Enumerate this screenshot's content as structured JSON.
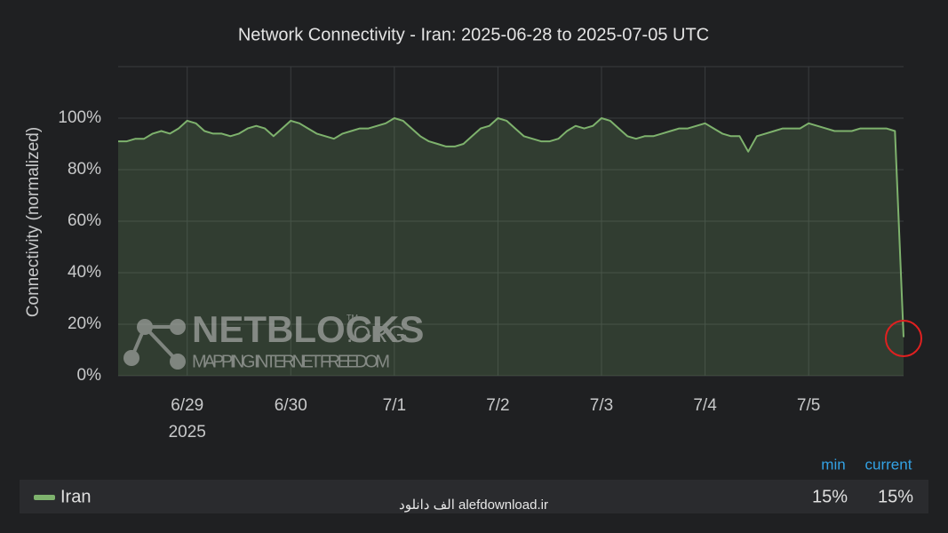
{
  "chart_data": {
    "type": "line",
    "title": "Network Connectivity - Iran: 2025-06-28 to 2025-07-05 UTC",
    "y_label": "Connectivity (normalized)",
    "year_label": "2025",
    "categories": [
      null,
      null,
      null,
      null,
      null,
      null,
      null,
      null,
      "6/29",
      null,
      null,
      null,
      null,
      null,
      null,
      null,
      null,
      null,
      null,
      null,
      "6/30",
      null,
      null,
      null,
      null,
      null,
      null,
      null,
      null,
      null,
      null,
      null,
      "7/1",
      null,
      null,
      null,
      null,
      null,
      null,
      null,
      null,
      null,
      null,
      null,
      "7/2",
      null,
      null,
      null,
      null,
      null,
      null,
      null,
      null,
      null,
      null,
      null,
      "7/3",
      null,
      null,
      null,
      null,
      null,
      null,
      null,
      null,
      null,
      null,
      null,
      "7/4",
      null,
      null,
      null,
      null,
      null,
      null,
      null,
      null,
      null,
      null,
      null,
      "7/5",
      null,
      null,
      null,
      null,
      null,
      null,
      null,
      null,
      null,
      null,
      null
    ],
    "series": [
      {
        "name": "Iran",
        "color": "#7eb26d",
        "values": [
          91,
          91,
          92,
          92,
          94,
          95,
          94,
          96,
          99,
          98,
          95,
          94,
          94,
          93,
          94,
          96,
          97,
          96,
          93,
          96,
          99,
          98,
          96,
          94,
          93,
          92,
          94,
          95,
          96,
          96,
          97,
          98,
          100,
          99,
          96,
          93,
          91,
          90,
          89,
          89,
          90,
          93,
          96,
          97,
          100,
          99,
          96,
          93,
          92,
          91,
          91,
          92,
          95,
          97,
          96,
          97,
          100,
          99,
          96,
          93,
          92,
          93,
          93,
          94,
          95,
          96,
          96,
          97,
          98,
          96,
          94,
          93,
          93,
          87,
          93,
          94,
          95,
          96,
          96,
          96,
          98,
          97,
          96,
          95,
          95,
          95,
          96,
          96,
          96,
          96,
          95,
          15
        ],
        "stats": {
          "values": [
            15,
            15
          ],
          "value_labels": [
            "15%",
            "15%"
          ]
        }
      }
    ],
    "legend": {
      "headers": [
        "min",
        "current"
      ]
    },
    "ylim": [
      0,
      120
    ],
    "yticks": [
      {
        "value": 0,
        "label": "0%"
      },
      {
        "value": 20,
        "label": "20%"
      },
      {
        "value": 40,
        "label": "40%"
      },
      {
        "value": 60,
        "label": "60%"
      },
      {
        "value": 80,
        "label": "80%"
      },
      {
        "value": 100,
        "label": "100%"
      }
    ],
    "grid": true,
    "watermark": {
      "brand": "NETBLOCKS",
      "suffix": ".ORG",
      "tm": "TM",
      "tagline": "MAPPING INTERNET FREEDOM",
      "site": "الف دانلود  alefdownload.ir"
    }
  }
}
